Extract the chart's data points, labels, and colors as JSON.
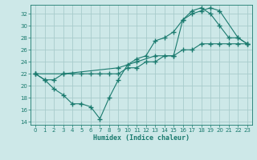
{
  "line1_x": [
    0,
    1,
    2,
    3,
    4,
    5,
    6,
    7,
    8,
    9,
    10,
    11,
    12,
    13,
    14,
    15,
    16,
    17,
    18,
    19,
    20,
    21,
    22,
    23
  ],
  "line1_y": [
    22,
    21,
    21,
    22,
    22,
    22,
    22,
    22,
    22,
    22,
    23,
    23,
    24,
    24,
    25,
    25,
    26,
    26,
    27,
    27,
    27,
    27,
    27,
    27
  ],
  "line2_x": [
    0,
    1,
    2,
    3,
    4,
    5,
    6,
    7,
    8,
    9,
    10,
    11,
    12,
    13,
    14,
    15,
    16,
    17,
    18,
    19,
    20,
    21,
    22,
    23
  ],
  "line2_y": [
    22,
    21,
    19.5,
    18.5,
    17,
    17,
    16.5,
    14.5,
    18,
    21,
    23.5,
    24.5,
    25,
    27.5,
    28,
    29,
    31,
    32.5,
    33,
    32,
    30,
    28,
    28,
    27
  ],
  "line3_x": [
    0,
    3,
    9,
    11,
    13,
    15,
    16,
    17,
    18,
    19,
    20,
    22,
    23
  ],
  "line3_y": [
    22,
    22,
    23,
    24,
    25,
    25,
    31,
    32,
    32.5,
    33,
    32.5,
    28,
    27
  ],
  "color": "#1a7a6e",
  "bg_color": "#cde8e8",
  "grid_color": "#a8cccc",
  "xlabel": "Humidex (Indice chaleur)",
  "xlim": [
    -0.5,
    23.5
  ],
  "ylim": [
    13.5,
    33.5
  ],
  "yticks": [
    14,
    16,
    18,
    20,
    22,
    24,
    26,
    28,
    30,
    32
  ],
  "xticks": [
    0,
    1,
    2,
    3,
    4,
    5,
    6,
    7,
    8,
    9,
    10,
    11,
    12,
    13,
    14,
    15,
    16,
    17,
    18,
    19,
    20,
    21,
    22,
    23
  ],
  "marker": "+",
  "markersize": 4,
  "linewidth": 0.8
}
